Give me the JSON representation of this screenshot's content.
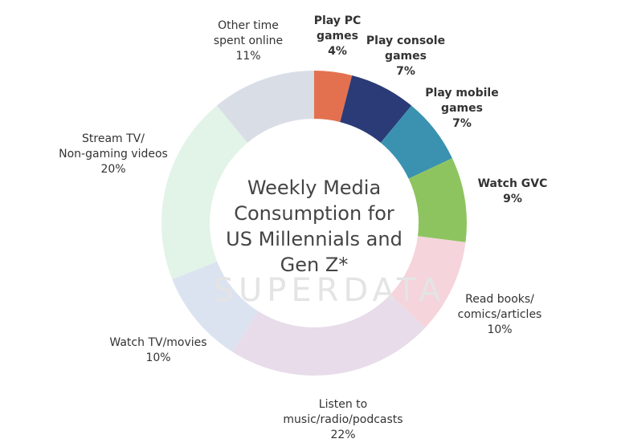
{
  "chart_data": {
    "type": "donut",
    "title": "Weekly Media\nConsumption for\nUS Millennials and\nGen Z*",
    "watermark": "SUPERDATA",
    "categories": [
      "Play PC\ngames",
      "Play console\ngames",
      "Play mobile\ngames",
      "Watch GVC",
      "Read books/\ncomics/articles",
      "Listen to\nmusic/radio/podcasts",
      "Watch TV/movies",
      "Stream TV/\nNon-gaming videos",
      "Other time\nspent online"
    ],
    "values": [
      4,
      7,
      7,
      9,
      10,
      22,
      10,
      20,
      11
    ],
    "value_labels": [
      "4%",
      "7%",
      "7%",
      "9%",
      "10%",
      "22%",
      "10%",
      "20%",
      "11%"
    ],
    "colors": [
      "#e3714f",
      "#2b3b77",
      "#3a92b0",
      "#8ec460",
      "#f5d4db",
      "#e8dbea",
      "#dbe3f1",
      "#e2f3e8",
      "#d9dde6"
    ],
    "bold": [
      true,
      true,
      true,
      true,
      false,
      false,
      false,
      false,
      false
    ]
  }
}
